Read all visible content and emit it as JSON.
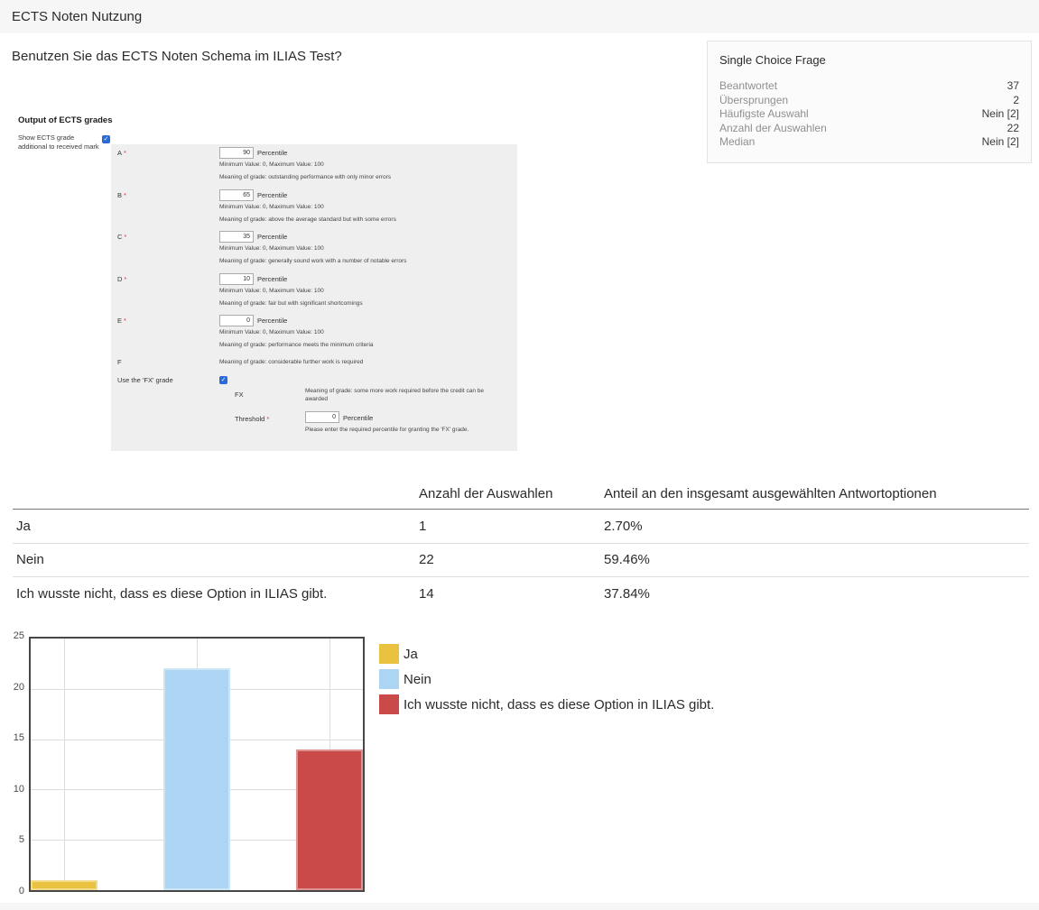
{
  "page": {
    "header_title": "ECTS Noten Nutzung",
    "question_text": "Benutzen Sie das ECTS Noten Schema im ILIAS Test?"
  },
  "stats_panel": {
    "title": "Single Choice Frage",
    "rows": [
      {
        "label": "Beantwortet",
        "value": "37"
      },
      {
        "label": "Übersprungen",
        "value": "2"
      },
      {
        "label": "Häufigste Auswahl",
        "value": "Nein [2]"
      },
      {
        "label": "Anzahl der Auswahlen",
        "value": "22"
      },
      {
        "label": "Median",
        "value": "Nein [2]"
      }
    ]
  },
  "icons": {
    "checkbox_check": "✓"
  },
  "ects_form": {
    "heading": "Output of ECTS grades",
    "show_label": "Show ECTS grade additional to received mark",
    "show_checked": true,
    "checkbox_color": "#2a6bd9",
    "required_marker": "*",
    "percentile_label": "Percentile",
    "min_max_text": "Minimum Value: 0, Maximum Value: 100",
    "grades": [
      {
        "label": "A",
        "required": true,
        "value": "90",
        "meaning": "Meaning of grade: outstanding performance with only minor errors"
      },
      {
        "label": "B",
        "required": true,
        "value": "65",
        "meaning": "Meaning of grade: above the average standard but with some errors"
      },
      {
        "label": "C",
        "required": true,
        "value": "35",
        "meaning": "Meaning of grade: generally sound work with a number of notable errors"
      },
      {
        "label": "D",
        "required": true,
        "value": "10",
        "meaning": "Meaning of grade: fair but with significant shortcomings"
      },
      {
        "label": "E",
        "required": true,
        "value": "0",
        "meaning": "Meaning of grade: performance meets the minimum criteria"
      },
      {
        "label": "F",
        "required": false,
        "meaning": "Meaning of grade: considerable further work is required"
      }
    ],
    "fx": {
      "use_label": "Use the 'FX' grade",
      "use_checked": true,
      "fx_label": "FX",
      "fx_meaning": "Meaning of grade: some more work required before the credit can be awarded",
      "threshold_label": "Threshold",
      "threshold_value": "0",
      "threshold_help": "Please enter the required percentile for granting the 'FX' grade."
    }
  },
  "results_table": {
    "columns": [
      "",
      "Anzahl der Auswahlen",
      "Anteil an den insgesamt ausgewählten Antwortoptionen"
    ],
    "rows": [
      {
        "option": "Ja",
        "count": "1",
        "share": "2.70%"
      },
      {
        "option": "Nein",
        "count": "22",
        "share": "59.46%"
      },
      {
        "option": "Ich wusste nicht, dass es diese Option in ILIAS gibt.",
        "count": "14",
        "share": "37.84%"
      }
    ]
  },
  "chart_data": {
    "type": "bar",
    "title": "",
    "xlabel": "",
    "ylabel": "",
    "categories": [
      "Ja",
      "Nein",
      "Ich wusste nicht, dass es diese Option in ILIAS gibt."
    ],
    "values": [
      1,
      22,
      14
    ],
    "colors": [
      "#e9c23f",
      "#abd5f3",
      "#c94a48"
    ],
    "ylim": [
      0,
      25
    ],
    "yticks": [
      0,
      5,
      10,
      15,
      20,
      25
    ],
    "grid": true,
    "legend_position": "right"
  }
}
